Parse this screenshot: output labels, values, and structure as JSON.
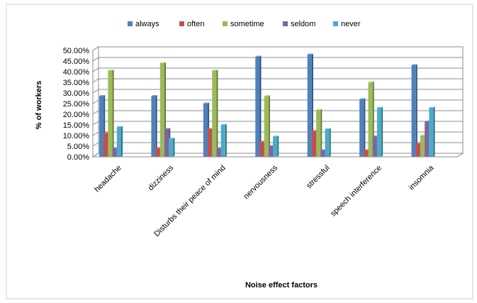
{
  "chart_data": {
    "type": "bar",
    "title": "",
    "xlabel": "Noise effect factors",
    "ylabel": "% of workers",
    "ylim": [
      0,
      50
    ],
    "yticks": [
      "0.00%",
      "5.00%",
      "10.00%",
      "15.00%",
      "20.00%",
      "25.00%",
      "30.00%",
      "35.00%",
      "40.00%",
      "45.00%",
      "50.00%"
    ],
    "categories": [
      "headache",
      "dizziness",
      "Disturbs their peace of mind",
      "nervousness",
      "stressful",
      "speech interference",
      "insomnia"
    ],
    "legend_position": "top",
    "grid": true,
    "series": [
      {
        "name": "always",
        "color": "#4F81BD",
        "values": [
          28.5,
          28.5,
          25.0,
          47.0,
          48.0,
          27.0,
          43.0
        ]
      },
      {
        "name": "often",
        "color": "#C0504D",
        "values": [
          11.0,
          4.0,
          13.0,
          7.0,
          12.0,
          3.0,
          6.0
        ]
      },
      {
        "name": "sometime",
        "color": "#9BBB59",
        "values": [
          40.5,
          44.0,
          40.5,
          28.5,
          22.0,
          35.0,
          10.0
        ]
      },
      {
        "name": "seldom",
        "color": "#8064A2",
        "values": [
          4.0,
          13.0,
          4.0,
          5.0,
          3.0,
          9.5,
          16.5
        ]
      },
      {
        "name": "never",
        "color": "#4BACC6",
        "values": [
          14.0,
          8.5,
          15.0,
          9.5,
          13.0,
          23.0,
          23.0
        ]
      }
    ]
  }
}
